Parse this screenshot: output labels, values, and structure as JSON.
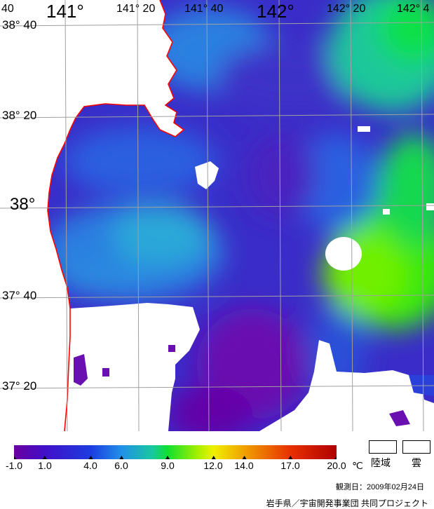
{
  "map": {
    "lon_labels": [
      {
        "text": "40",
        "lon": 140.667,
        "major": false
      },
      {
        "text": "141°",
        "lon": 141.0,
        "major": true
      },
      {
        "text": "141° 20",
        "lon": 141.333,
        "major": false
      },
      {
        "text": "141° 40",
        "lon": 141.667,
        "major": false
      },
      {
        "text": "142°",
        "lon": 142.0,
        "major": true
      },
      {
        "text": "142° 20",
        "lon": 142.333,
        "major": false
      },
      {
        "text": "142° 4",
        "lon": 142.667,
        "major": false
      }
    ],
    "lat_labels": [
      {
        "text": "38° 40",
        "lat": 38.667,
        "major": false
      },
      {
        "text": "38° 20",
        "lat": 38.333,
        "major": false
      },
      {
        "text": "38°",
        "lat": 38.0,
        "major": true
      },
      {
        "text": "37° 40",
        "lat": 37.667,
        "major": false
      },
      {
        "text": "37° 20",
        "lat": 37.333,
        "major": false
      }
    ],
    "colors": {
      "land": "#ffffff",
      "coastline": "#ff0000",
      "grid": "#a0a0a0"
    }
  },
  "colorbar": {
    "unit": "℃",
    "ticks": [
      "-1.0",
      "1.0",
      "4.0",
      "6.0",
      "9.0",
      "12.0",
      "14.0",
      "17.0",
      "20.0"
    ],
    "tick_values": [
      -1,
      1,
      4,
      6,
      9,
      12,
      14,
      17,
      20
    ],
    "range": [
      -1,
      20
    ],
    "stops": [
      {
        "value": -1,
        "color": "#6a00a0"
      },
      {
        "value": 1,
        "color": "#4010c8"
      },
      {
        "value": 4,
        "color": "#1c3ce0"
      },
      {
        "value": 6,
        "color": "#2090e8"
      },
      {
        "value": 8,
        "color": "#18c8a0"
      },
      {
        "value": 9,
        "color": "#10e030"
      },
      {
        "value": 11,
        "color": "#a8f000"
      },
      {
        "value": 12,
        "color": "#f0f000"
      },
      {
        "value": 14,
        "color": "#f0a000"
      },
      {
        "value": 17,
        "color": "#e83000"
      },
      {
        "value": 20,
        "color": "#b00000"
      }
    ]
  },
  "legend": {
    "land_label": "陸域",
    "cloud_label": "雲"
  },
  "observation_date": "観測日：2009年02月24日",
  "credit": "岩手県／宇宙開発事業団 共同プロジェクト"
}
